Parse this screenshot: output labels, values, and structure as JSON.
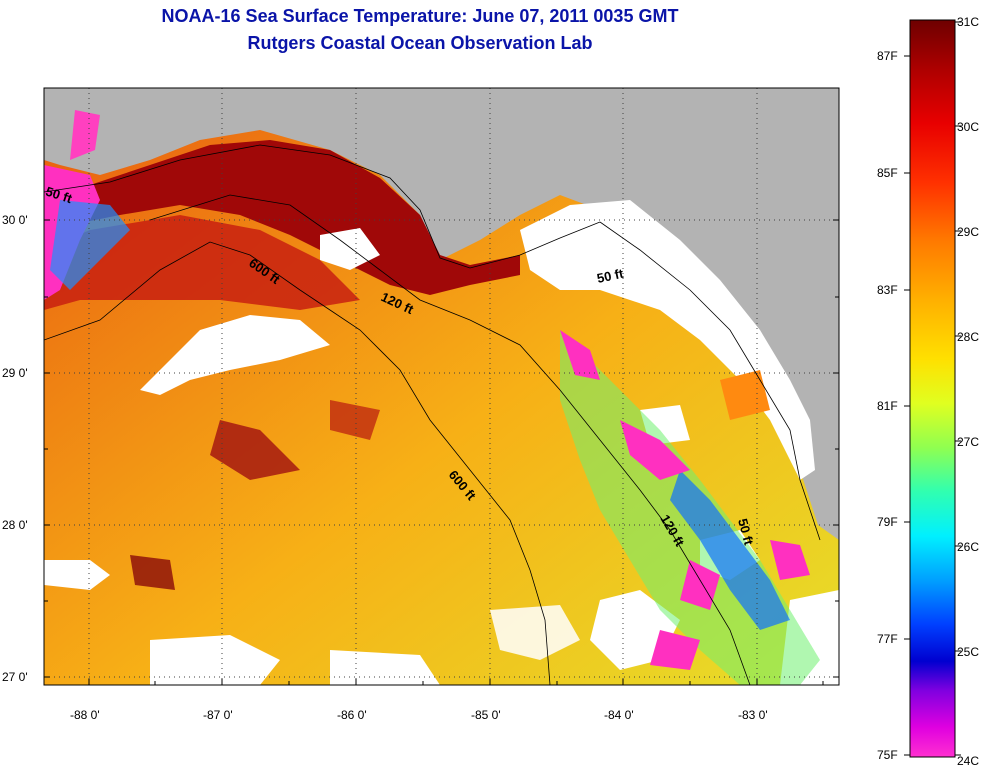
{
  "title": "NOAA-16 Sea Surface Temperature:  June 07, 2011 0035 GMT",
  "subtitle": "Rutgers Coastal Ocean Observation Lab",
  "axes": {
    "x_ticks": [
      "-88 0'",
      "-87 0'",
      "-86 0'",
      "-85 0'",
      "-84 0'",
      "-83 0'"
    ],
    "y_ticks": [
      "30 0'",
      "29 0'",
      "28 0'",
      "27 0'"
    ]
  },
  "contours": {
    "ft50_a": "50 ft",
    "ft50_b": "50 ft",
    "ft50_c": "50 ft",
    "ft120_a": "120 ft",
    "ft120_b": "120 ft",
    "ft600_a": "600 ft",
    "ft600_b": "600 ft"
  },
  "colorbar": {
    "celsius": [
      "31C",
      "30C",
      "29C",
      "28C",
      "27C",
      "26C",
      "25C",
      "24C"
    ],
    "fahrenheit": [
      "87F",
      "85F",
      "83F",
      "81F",
      "79F",
      "77F",
      "75F"
    ],
    "colors": [
      "#7a0000",
      "#c00000",
      "#ff2000",
      "#ff8000",
      "#ffc000",
      "#ffff00",
      "#80ff40",
      "#00ffd0",
      "#00c0ff",
      "#0060ff",
      "#0000e0",
      "#c000ff",
      "#ff00c0"
    ]
  }
}
